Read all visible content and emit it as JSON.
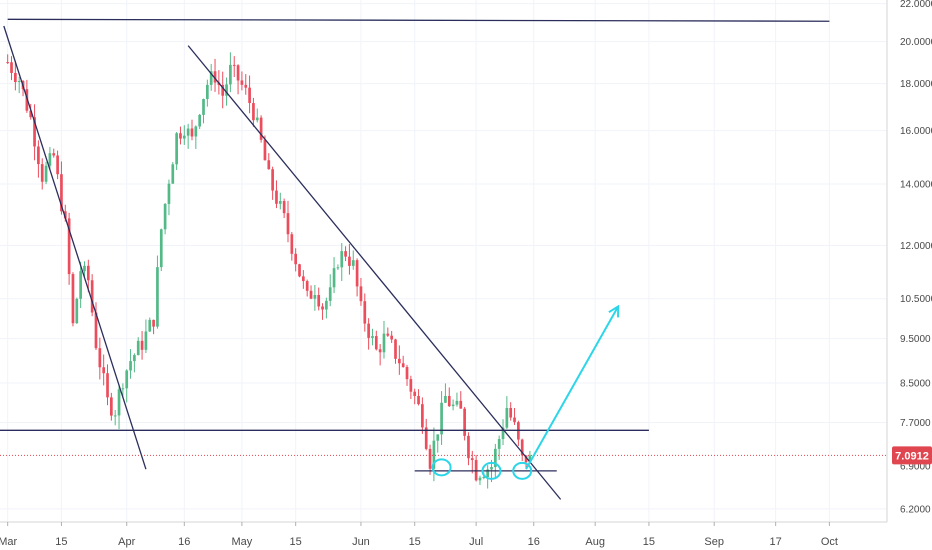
{
  "chart_data": {
    "type": "candlestick",
    "scale": "log",
    "ylim": [
      6.0,
      22.2
    ],
    "y_ticks": [
      "22.0000",
      "20.0000",
      "18.0000",
      "16.0000",
      "14.0000",
      "12.0000",
      "10.5000",
      "9.5000",
      "8.5000",
      "7.7000",
      "6.2000"
    ],
    "y_tick_values": [
      22.0,
      20.0,
      18.0,
      16.0,
      14.0,
      12.0,
      10.5,
      9.5,
      8.5,
      7.7,
      6.2
    ],
    "hidden_tick": {
      "label": "6.9000",
      "value": 6.9
    },
    "x_ticks": [
      "Mar",
      "15",
      "Apr",
      "16",
      "May",
      "15",
      "Jun",
      "15",
      "Jul",
      "16",
      "Aug",
      "15",
      "Sep",
      "17",
      "Oct"
    ],
    "x_tick_days": [
      0,
      14,
      31,
      46,
      61,
      75,
      92,
      106,
      122,
      137,
      153,
      167,
      184,
      200,
      214
    ],
    "x_range_days": [
      -2,
      229
    ],
    "current_price": {
      "label": "7.0912",
      "value": 7.0912,
      "color": "#e0464f"
    },
    "colors": {
      "up": "#53b987",
      "down": "#eb4d5c",
      "line": "#2b2e5c",
      "arrow": "#2bd6e8",
      "circle": "#2bd6e8",
      "price_line": "#e0464f"
    },
    "waypoints": [
      [
        0,
        19.0
      ],
      [
        3,
        18.2
      ],
      [
        6,
        16.5
      ],
      [
        9,
        14.3
      ],
      [
        12,
        15.0
      ],
      [
        15,
        12.6
      ],
      [
        17,
        9.8
      ],
      [
        19,
        11.3
      ],
      [
        21,
        11.0
      ],
      [
        23,
        9.4
      ],
      [
        26,
        8.1
      ],
      [
        28,
        7.95
      ],
      [
        30,
        8.6
      ],
      [
        32,
        9.0
      ],
      [
        35,
        9.4
      ],
      [
        38,
        10.0
      ],
      [
        40,
        12.5
      ],
      [
        42,
        14.2
      ],
      [
        44,
        15.8
      ],
      [
        46,
        16.2
      ],
      [
        48,
        15.6
      ],
      [
        50,
        17.0
      ],
      [
        52,
        18.0
      ],
      [
        54,
        18.4
      ],
      [
        56,
        17.5
      ],
      [
        58,
        18.6
      ],
      [
        60,
        18.2
      ],
      [
        62,
        17.6
      ],
      [
        64,
        16.8
      ],
      [
        66,
        15.5
      ],
      [
        68,
        14.2
      ],
      [
        70,
        13.5
      ],
      [
        72,
        12.8
      ],
      [
        74,
        12.0
      ],
      [
        76,
        11.2
      ],
      [
        78,
        10.5
      ],
      [
        80,
        10.8
      ],
      [
        82,
        10.3
      ],
      [
        84,
        10.6
      ],
      [
        86,
        11.6
      ],
      [
        88,
        11.8
      ],
      [
        90,
        11.4
      ],
      [
        92,
        10.2
      ],
      [
        94,
        9.7
      ],
      [
        96,
        9.2
      ],
      [
        98,
        9.5
      ],
      [
        100,
        9.3
      ],
      [
        102,
        9.0
      ],
      [
        104,
        8.6
      ],
      [
        106,
        8.2
      ],
      [
        108,
        7.8
      ],
      [
        110,
        7.0
      ],
      [
        112,
        7.6
      ],
      [
        114,
        8.2
      ],
      [
        116,
        8.0
      ],
      [
        118,
        7.9
      ],
      [
        120,
        7.2
      ],
      [
        122,
        6.8
      ],
      [
        124,
        6.85
      ],
      [
        126,
        6.9
      ],
      [
        128,
        7.4
      ],
      [
        130,
        8.0
      ],
      [
        132,
        7.6
      ],
      [
        134,
        7.0
      ],
      [
        136,
        7.09
      ]
    ],
    "trendlines": [
      {
        "name": "downtrend-1",
        "p1": [
          -1,
          20.8
        ],
        "p2": [
          36,
          6.85
        ]
      },
      {
        "name": "downtrend-2",
        "p1": [
          47,
          19.8
        ],
        "p2": [
          144,
          6.35
        ]
      },
      {
        "name": "resistance-top",
        "p1": [
          0,
          21.15
        ],
        "p2": [
          214,
          21.05
        ]
      },
      {
        "name": "support-mid",
        "p1": [
          -2,
          7.55
        ],
        "p2": [
          167,
          7.55
        ]
      },
      {
        "name": "support-low",
        "p1": [
          106,
          6.82
        ],
        "p2": [
          143,
          6.82
        ]
      }
    ],
    "arrow": {
      "p1": [
        135,
        6.85
      ],
      "p2": [
        159,
        10.3
      ]
    },
    "circles": [
      {
        "x": 113,
        "y": 6.88
      },
      {
        "x": 126,
        "y": 6.82
      },
      {
        "x": 134,
        "y": 6.82
      }
    ],
    "price_line_value": 7.0912
  }
}
